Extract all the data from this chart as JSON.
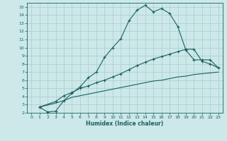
{
  "title": "",
  "xlabel": "Humidex (Indice chaleur)",
  "background_color": "#cce8e8",
  "grid_color": "#aacccc",
  "line_color": "#1a6060",
  "xlim": [
    -0.5,
    23.5
  ],
  "ylim": [
    2,
    15.5
  ],
  "xticks": [
    0,
    1,
    2,
    3,
    4,
    5,
    6,
    7,
    8,
    9,
    10,
    11,
    12,
    13,
    14,
    15,
    16,
    17,
    18,
    19,
    20,
    21,
    22,
    23
  ],
  "yticks": [
    2,
    3,
    4,
    5,
    6,
    7,
    8,
    9,
    10,
    11,
    12,
    13,
    14,
    15
  ],
  "curve1_x": [
    1,
    2,
    3,
    4,
    5,
    6,
    7,
    8,
    9,
    10,
    11,
    12,
    13,
    14,
    15,
    16,
    17,
    18,
    19,
    20,
    21,
    22,
    23
  ],
  "curve1_y": [
    2.7,
    2.1,
    2.2,
    3.5,
    4.4,
    5.2,
    6.3,
    7.0,
    8.8,
    10.0,
    11.1,
    13.3,
    14.6,
    15.2,
    14.4,
    14.8,
    14.2,
    12.6,
    9.7,
    8.5,
    8.5,
    8.5,
    7.5
  ],
  "curve2_x": [
    1,
    3,
    4,
    5,
    6,
    7,
    8,
    9,
    10,
    11,
    12,
    13,
    14,
    15,
    16,
    17,
    18,
    19,
    20,
    21,
    22,
    23
  ],
  "curve2_y": [
    2.7,
    3.4,
    4.1,
    4.5,
    5.0,
    5.3,
    5.7,
    6.0,
    6.4,
    6.8,
    7.3,
    7.8,
    8.2,
    8.6,
    8.9,
    9.2,
    9.5,
    9.8,
    9.8,
    8.3,
    8.0,
    7.5
  ],
  "curve3_x": [
    1,
    3,
    4,
    5,
    6,
    7,
    8,
    9,
    10,
    11,
    12,
    13,
    14,
    15,
    16,
    17,
    18,
    19,
    20,
    21,
    22,
    23
  ],
  "curve3_y": [
    2.7,
    3.2,
    3.5,
    3.9,
    4.1,
    4.3,
    4.5,
    4.7,
    4.9,
    5.1,
    5.3,
    5.5,
    5.7,
    5.9,
    6.0,
    6.2,
    6.4,
    6.5,
    6.7,
    6.8,
    6.9,
    7.0
  ]
}
